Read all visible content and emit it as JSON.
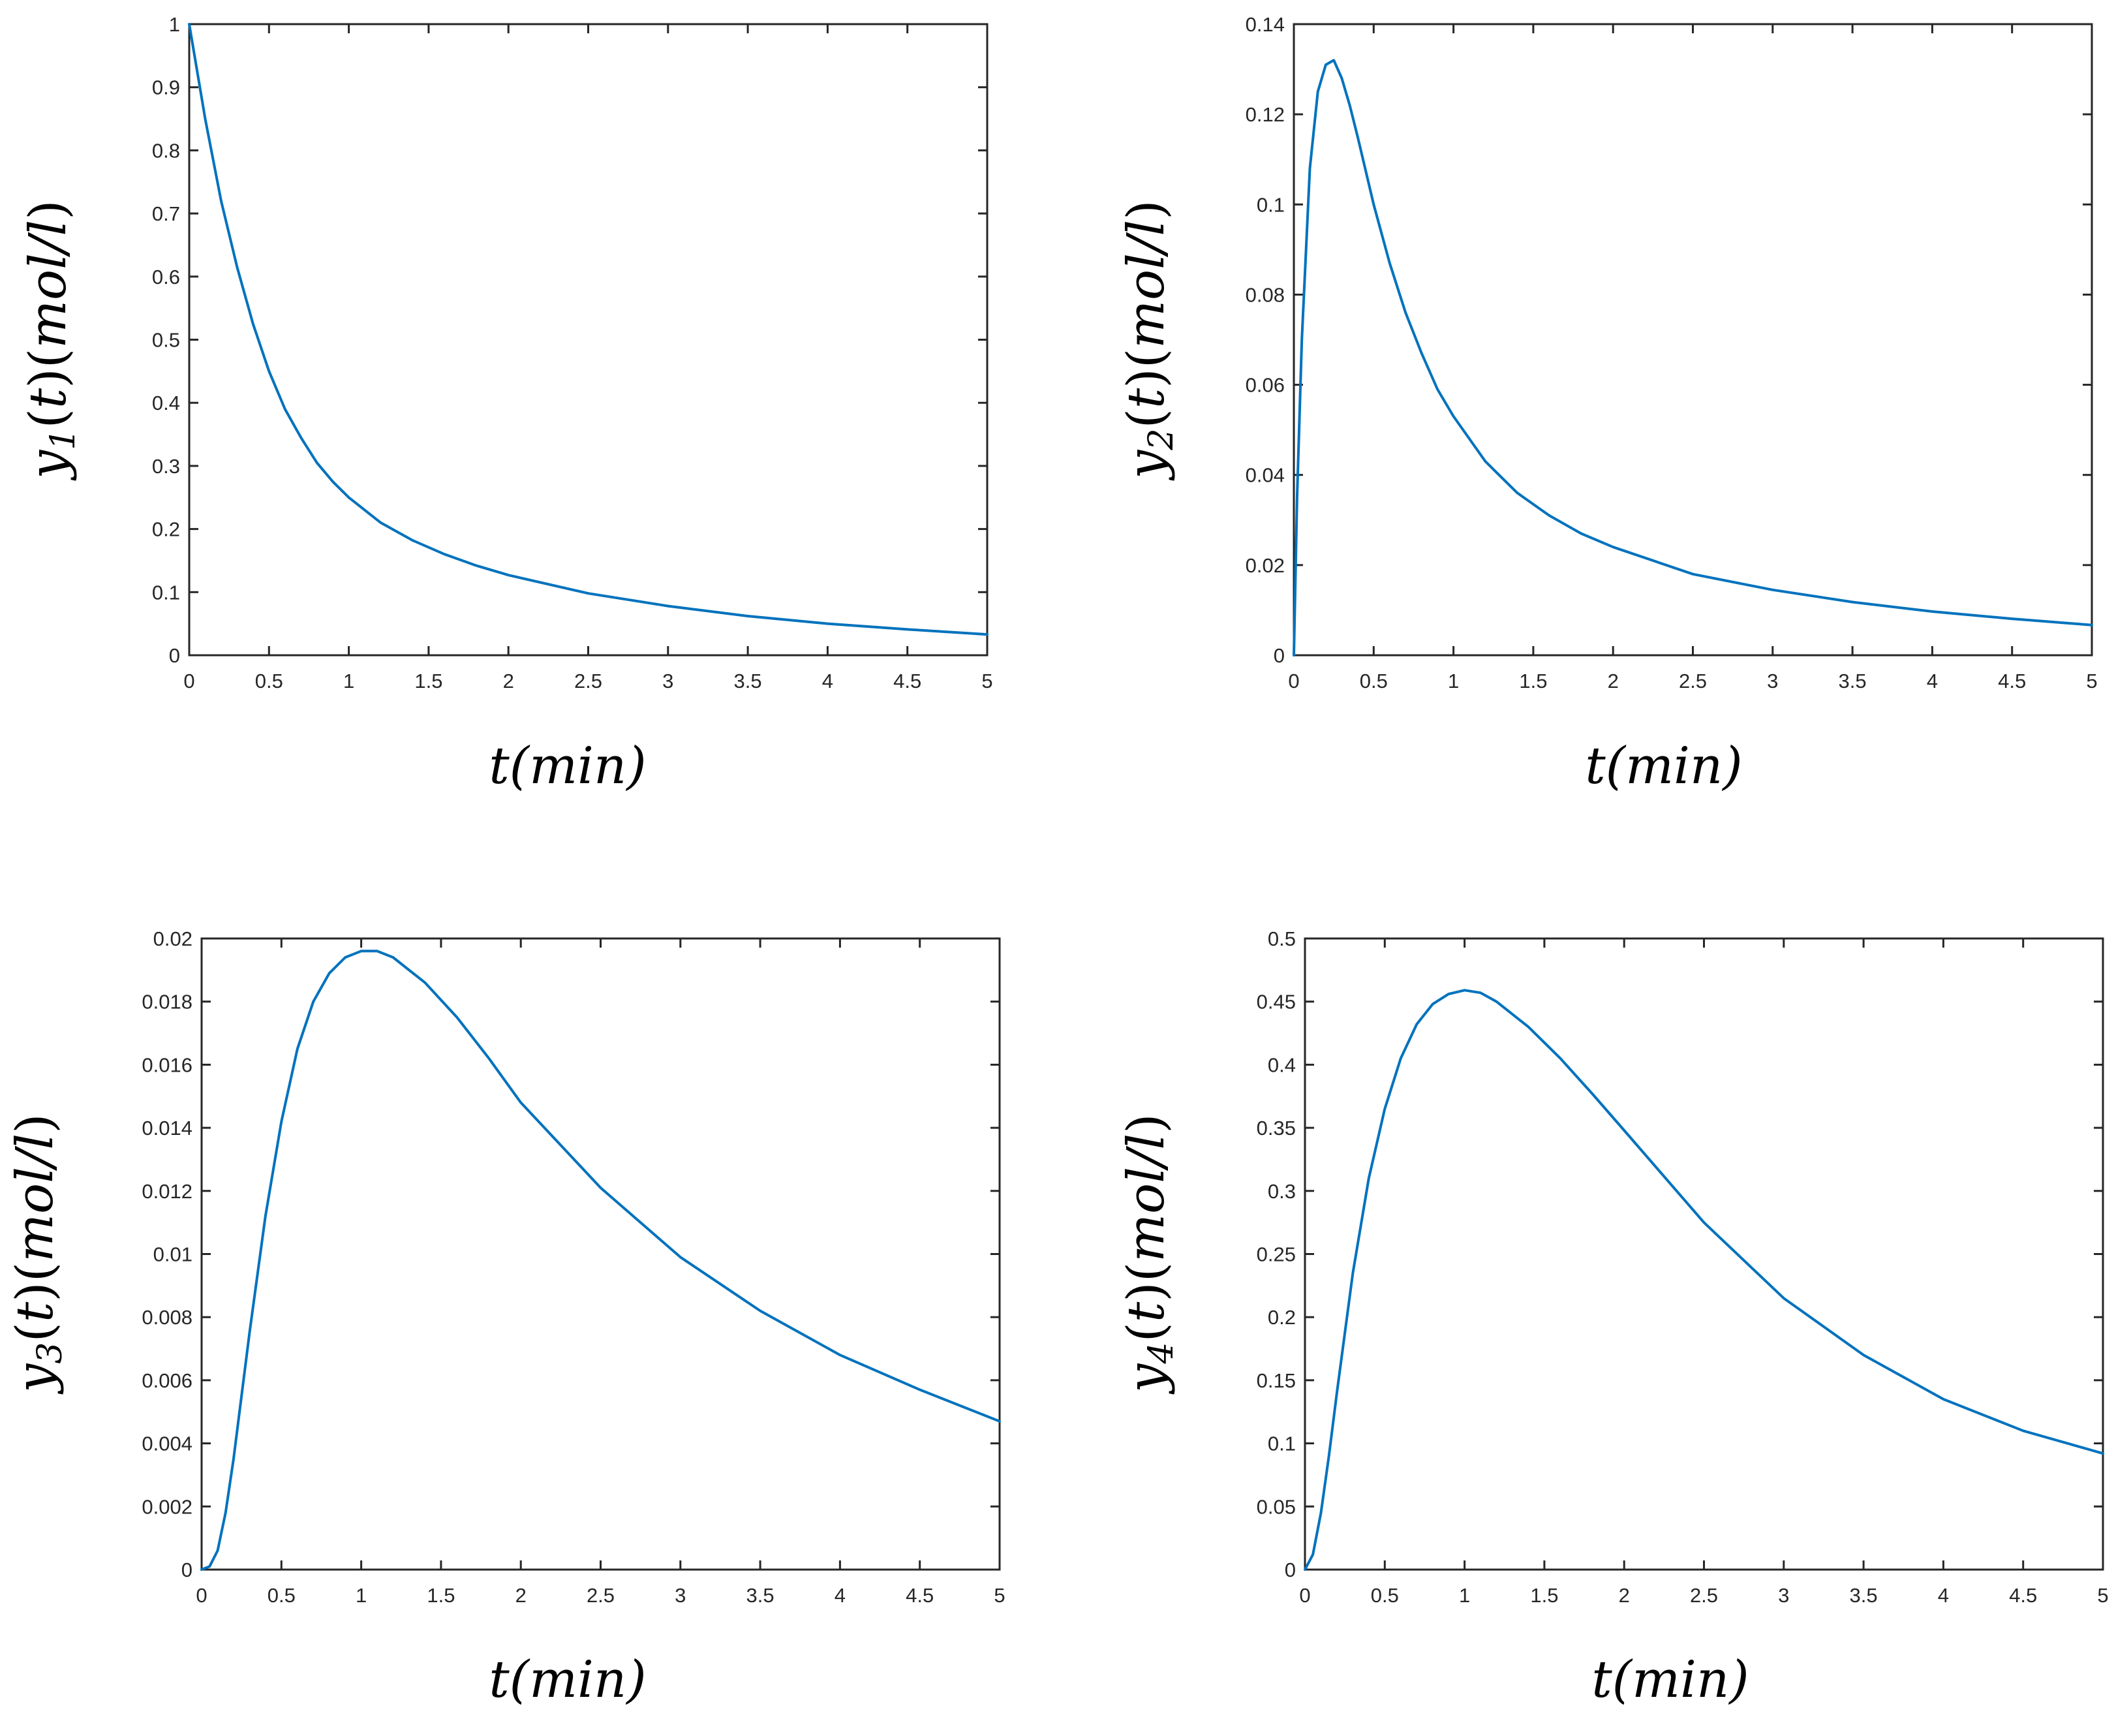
{
  "chart_data": [
    {
      "type": "line",
      "panel": "top-left",
      "xlabel": "t(min)",
      "ylabel": {
        "var": "y",
        "sub": "1",
        "arg": "t",
        "unit": "mol/l"
      },
      "xlim": [
        0,
        5
      ],
      "ylim": [
        0,
        1
      ],
      "xticks": [
        0,
        0.5,
        1,
        1.5,
        2,
        2.5,
        3,
        3.5,
        4,
        4.5,
        5
      ],
      "xtick_labels": [
        "0",
        "0.5",
        "1",
        "1.5",
        "2",
        "2.5",
        "3",
        "3.5",
        "4",
        "4.5",
        "5"
      ],
      "yticks": [
        0,
        0.1,
        0.2,
        0.3,
        0.4,
        0.5,
        0.6,
        0.7,
        0.8,
        0.9,
        1
      ],
      "ytick_labels": [
        "0",
        "0.1",
        "0.2",
        "0.3",
        "0.4",
        "0.5",
        "0.6",
        "0.7",
        "0.8",
        "0.9",
        "1"
      ],
      "grid": false,
      "series": [
        {
          "name": "y1",
          "color": "#0072BD",
          "x": [
            0,
            0.1,
            0.2,
            0.3,
            0.4,
            0.5,
            0.6,
            0.7,
            0.8,
            0.9,
            1.0,
            1.2,
            1.4,
            1.6,
            1.8,
            2.0,
            2.5,
            3.0,
            3.5,
            4.0,
            4.5,
            5.0
          ],
          "y": [
            1.0,
            0.85,
            0.72,
            0.615,
            0.525,
            0.45,
            0.39,
            0.345,
            0.305,
            0.275,
            0.25,
            0.21,
            0.182,
            0.16,
            0.142,
            0.127,
            0.098,
            0.078,
            0.062,
            0.05,
            0.041,
            0.033
          ]
        }
      ]
    },
    {
      "type": "line",
      "panel": "top-right",
      "xlabel": "t(min)",
      "ylabel": {
        "var": "y",
        "sub": "2",
        "arg": "t",
        "unit": "mol/l"
      },
      "xlim": [
        0,
        5
      ],
      "ylim": [
        0,
        0.14
      ],
      "xticks": [
        0,
        0.5,
        1,
        1.5,
        2,
        2.5,
        3,
        3.5,
        4,
        4.5,
        5
      ],
      "xtick_labels": [
        "0",
        "0.5",
        "1",
        "1.5",
        "2",
        "2.5",
        "3",
        "3.5",
        "4",
        "4.5",
        "5"
      ],
      "yticks": [
        0,
        0.02,
        0.04,
        0.06,
        0.08,
        0.1,
        0.12,
        0.14
      ],
      "ytick_labels": [
        "0",
        "0.02",
        "0.04",
        "0.06",
        "0.08",
        "0.1",
        "0.12",
        "0.14"
      ],
      "grid": false,
      "series": [
        {
          "name": "y2",
          "color": "#0072BD",
          "x": [
            0,
            0.02,
            0.05,
            0.1,
            0.15,
            0.2,
            0.25,
            0.3,
            0.35,
            0.4,
            0.5,
            0.6,
            0.7,
            0.8,
            0.9,
            1.0,
            1.2,
            1.4,
            1.6,
            1.8,
            2.0,
            2.5,
            3.0,
            3.5,
            4.0,
            4.5,
            5.0
          ],
          "y": [
            0,
            0.035,
            0.07,
            0.108,
            0.125,
            0.131,
            0.132,
            0.128,
            0.122,
            0.115,
            0.1,
            0.087,
            0.076,
            0.067,
            0.059,
            0.053,
            0.043,
            0.036,
            0.031,
            0.027,
            0.024,
            0.018,
            0.0145,
            0.0118,
            0.0097,
            0.0081,
            0.0067
          ]
        }
      ]
    },
    {
      "type": "line",
      "panel": "bottom-left",
      "xlabel": "t(min)",
      "ylabel": {
        "var": "y",
        "sub": "3",
        "arg": "t",
        "unit": "mol/l"
      },
      "xlim": [
        0,
        5
      ],
      "ylim": [
        0,
        0.02
      ],
      "xticks": [
        0,
        0.5,
        1,
        1.5,
        2,
        2.5,
        3,
        3.5,
        4,
        4.5,
        5
      ],
      "xtick_labels": [
        "0",
        "0.5",
        "1",
        "1.5",
        "2",
        "2.5",
        "3",
        "3.5",
        "4",
        "4.5",
        "5"
      ],
      "yticks": [
        0,
        0.002,
        0.004,
        0.006,
        0.008,
        0.01,
        0.012,
        0.014,
        0.016,
        0.018,
        0.02
      ],
      "ytick_labels": [
        "0",
        "0.002",
        "0.004",
        "0.006",
        "0.008",
        "0.01",
        "0.012",
        "0.014",
        "0.016",
        "0.018",
        "0.02"
      ],
      "grid": false,
      "series": [
        {
          "name": "y3",
          "color": "#0072BD",
          "x": [
            0,
            0.05,
            0.1,
            0.15,
            0.2,
            0.3,
            0.4,
            0.5,
            0.6,
            0.7,
            0.8,
            0.9,
            1.0,
            1.1,
            1.2,
            1.4,
            1.6,
            1.8,
            2.0,
            2.5,
            3.0,
            3.5,
            4.0,
            4.5,
            5.0
          ],
          "y": [
            0,
            0.0001,
            0.0006,
            0.0018,
            0.0035,
            0.0075,
            0.0112,
            0.0142,
            0.0165,
            0.018,
            0.0189,
            0.0194,
            0.0196,
            0.0196,
            0.0194,
            0.0186,
            0.0175,
            0.0162,
            0.0148,
            0.0121,
            0.0099,
            0.0082,
            0.0068,
            0.0057,
            0.0047
          ]
        }
      ]
    },
    {
      "type": "line",
      "panel": "bottom-right",
      "xlabel": "t(min)",
      "ylabel": {
        "var": "y",
        "sub": "4",
        "arg": "t",
        "unit": "mol/l"
      },
      "xlim": [
        0,
        5
      ],
      "ylim": [
        0,
        0.5
      ],
      "xticks": [
        0,
        0.5,
        1,
        1.5,
        2,
        2.5,
        3,
        3.5,
        4,
        4.5,
        5
      ],
      "xtick_labels": [
        "0",
        "0.5",
        "1",
        "1.5",
        "2",
        "2.5",
        "3",
        "3.5",
        "4",
        "4.5",
        "5"
      ],
      "yticks": [
        0,
        0.05,
        0.1,
        0.15,
        0.2,
        0.25,
        0.3,
        0.35,
        0.4,
        0.45,
        0.5
      ],
      "ytick_labels": [
        "0",
        "0.05",
        "0.1",
        "0.15",
        "0.2",
        "0.25",
        "0.3",
        "0.35",
        "0.4",
        "0.45",
        "0.5"
      ],
      "grid": false,
      "series": [
        {
          "name": "y4",
          "color": "#0072BD",
          "x": [
            0,
            0.05,
            0.1,
            0.15,
            0.2,
            0.3,
            0.4,
            0.5,
            0.6,
            0.7,
            0.8,
            0.9,
            1.0,
            1.1,
            1.2,
            1.4,
            1.6,
            1.8,
            2.0,
            2.5,
            3.0,
            3.5,
            4.0,
            4.5,
            5.0
          ],
          "y": [
            0,
            0.012,
            0.045,
            0.09,
            0.14,
            0.235,
            0.31,
            0.365,
            0.405,
            0.432,
            0.448,
            0.456,
            0.459,
            0.457,
            0.45,
            0.43,
            0.405,
            0.377,
            0.348,
            0.275,
            0.215,
            0.17,
            0.135,
            0.11,
            0.092
          ]
        }
      ]
    }
  ]
}
